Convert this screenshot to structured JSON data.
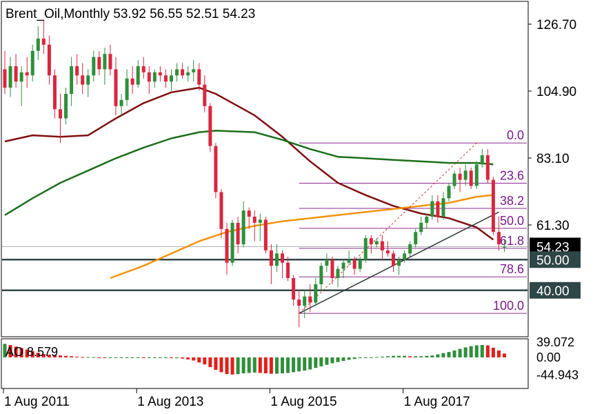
{
  "title": "Brent_Oil,Monthly  53.92 56.55 52.51 54.23",
  "chart_data": {
    "type": "candlestick",
    "symbol": "Brent_Oil",
    "timeframe": "Monthly",
    "ohlc_header": {
      "open": 53.92,
      "high": 56.55,
      "low": 52.51,
      "close": 54.23
    },
    "y_ticks": [
      "126.70",
      "104.90",
      "83.10",
      "61.30"
    ],
    "y_ticks_values": [
      126.7,
      104.9,
      83.1,
      61.3
    ],
    "last_price_label": "54.23",
    "last_price": 54.23,
    "horizontal_levels": [
      {
        "label": "50.00",
        "value": 50.0
      },
      {
        "label": "40.00",
        "value": 40.0
      }
    ],
    "x_ticks": [
      "1 Aug 2011",
      "1 Aug 2013",
      "1 Aug 2015",
      "1 Aug 2017"
    ],
    "fib_levels": [
      {
        "label": "0.0",
        "value": 88.0
      },
      {
        "label": "23.6",
        "value": 74.9
      },
      {
        "label": "38.2",
        "value": 66.7
      },
      {
        "label": "50.0",
        "value": 60.2
      },
      {
        "label": "61.8",
        "value": 53.7
      },
      {
        "label": "78.6",
        "value": 44.4
      },
      {
        "label": "100.0",
        "value": 32.5
      }
    ],
    "candles": [
      {
        "o": 112,
        "h": 118,
        "l": 104,
        "c": 106
      },
      {
        "o": 106,
        "h": 116,
        "l": 103,
        "c": 113
      },
      {
        "o": 113,
        "h": 117,
        "l": 106,
        "c": 108
      },
      {
        "o": 108,
        "h": 113,
        "l": 100,
        "c": 111
      },
      {
        "o": 111,
        "h": 116,
        "l": 106,
        "c": 110
      },
      {
        "o": 110,
        "h": 120,
        "l": 108,
        "c": 118
      },
      {
        "o": 118,
        "h": 126,
        "l": 115,
        "c": 122
      },
      {
        "o": 122,
        "h": 128,
        "l": 117,
        "c": 120
      },
      {
        "o": 120,
        "h": 123,
        "l": 107,
        "c": 110
      },
      {
        "o": 110,
        "h": 112,
        "l": 96,
        "c": 99
      },
      {
        "o": 99,
        "h": 104,
        "l": 88,
        "c": 96
      },
      {
        "o": 96,
        "h": 106,
        "l": 94,
        "c": 104
      },
      {
        "o": 104,
        "h": 116,
        "l": 100,
        "c": 113
      },
      {
        "o": 113,
        "h": 117,
        "l": 107,
        "c": 110
      },
      {
        "o": 110,
        "h": 114,
        "l": 104,
        "c": 107
      },
      {
        "o": 107,
        "h": 112,
        "l": 103,
        "c": 110
      },
      {
        "o": 110,
        "h": 118,
        "l": 108,
        "c": 116
      },
      {
        "o": 116,
        "h": 118,
        "l": 110,
        "c": 112
      },
      {
        "o": 112,
        "h": 119,
        "l": 107,
        "c": 117
      },
      {
        "o": 117,
        "h": 120,
        "l": 110,
        "c": 112
      },
      {
        "o": 112,
        "h": 116,
        "l": 97,
        "c": 100
      },
      {
        "o": 100,
        "h": 104,
        "l": 97,
        "c": 102
      },
      {
        "o": 102,
        "h": 112,
        "l": 100,
        "c": 109
      },
      {
        "o": 109,
        "h": 113,
        "l": 104,
        "c": 107
      },
      {
        "o": 107,
        "h": 115,
        "l": 106,
        "c": 113
      },
      {
        "o": 113,
        "h": 116,
        "l": 109,
        "c": 111
      },
      {
        "o": 111,
        "h": 113,
        "l": 104,
        "c": 108
      },
      {
        "o": 108,
        "h": 112,
        "l": 106,
        "c": 111
      },
      {
        "o": 111,
        "h": 113,
        "l": 108,
        "c": 110
      },
      {
        "o": 110,
        "h": 112,
        "l": 106,
        "c": 108
      },
      {
        "o": 108,
        "h": 112,
        "l": 105,
        "c": 110
      },
      {
        "o": 110,
        "h": 114,
        "l": 108,
        "c": 112
      },
      {
        "o": 112,
        "h": 114,
        "l": 109,
        "c": 110
      },
      {
        "o": 110,
        "h": 113,
        "l": 108,
        "c": 111
      },
      {
        "o": 111,
        "h": 115,
        "l": 108,
        "c": 112
      },
      {
        "o": 112,
        "h": 114,
        "l": 105,
        "c": 107
      },
      {
        "o": 107,
        "h": 110,
        "l": 98,
        "c": 100
      },
      {
        "o": 100,
        "h": 101,
        "l": 85,
        "c": 87
      },
      {
        "o": 87,
        "h": 88,
        "l": 70,
        "c": 72
      },
      {
        "o": 72,
        "h": 73,
        "l": 57,
        "c": 60
      },
      {
        "o": 60,
        "h": 62,
        "l": 45,
        "c": 49
      },
      {
        "o": 49,
        "h": 63,
        "l": 48,
        "c": 62
      },
      {
        "o": 62,
        "h": 64,
        "l": 52,
        "c": 55
      },
      {
        "o": 55,
        "h": 69,
        "l": 54,
        "c": 66
      },
      {
        "o": 66,
        "h": 67,
        "l": 60,
        "c": 64
      },
      {
        "o": 64,
        "h": 66,
        "l": 56,
        "c": 62
      },
      {
        "o": 62,
        "h": 65,
        "l": 56,
        "c": 63
      },
      {
        "o": 63,
        "h": 64,
        "l": 52,
        "c": 53
      },
      {
        "o": 53,
        "h": 55,
        "l": 42,
        "c": 48
      },
      {
        "o": 48,
        "h": 55,
        "l": 46,
        "c": 52
      },
      {
        "o": 52,
        "h": 53,
        "l": 44,
        "c": 49
      },
      {
        "o": 49,
        "h": 51,
        "l": 43,
        "c": 44
      },
      {
        "o": 44,
        "h": 45,
        "l": 35,
        "c": 37
      },
      {
        "o": 37,
        "h": 40,
        "l": 28,
        "c": 35
      },
      {
        "o": 35,
        "h": 40,
        "l": 31,
        "c": 38
      },
      {
        "o": 38,
        "h": 42,
        "l": 33,
        "c": 36
      },
      {
        "o": 36,
        "h": 44,
        "l": 35,
        "c": 42
      },
      {
        "o": 42,
        "h": 49,
        "l": 40,
        "c": 48
      },
      {
        "o": 48,
        "h": 52,
        "l": 46,
        "c": 50
      },
      {
        "o": 50,
        "h": 51,
        "l": 42,
        "c": 44
      },
      {
        "o": 44,
        "h": 48,
        "l": 41,
        "c": 47
      },
      {
        "o": 47,
        "h": 50,
        "l": 44,
        "c": 49
      },
      {
        "o": 49,
        "h": 53,
        "l": 48,
        "c": 50
      },
      {
        "o": 50,
        "h": 51,
        "l": 45,
        "c": 47
      },
      {
        "o": 47,
        "h": 51,
        "l": 46,
        "c": 50
      },
      {
        "o": 50,
        "h": 58,
        "l": 49,
        "c": 57
      },
      {
        "o": 57,
        "h": 58,
        "l": 52,
        "c": 55
      },
      {
        "o": 55,
        "h": 57,
        "l": 54,
        "c": 56
      },
      {
        "o": 56,
        "h": 58,
        "l": 50,
        "c": 53
      },
      {
        "o": 53,
        "h": 56,
        "l": 51,
        "c": 52
      },
      {
        "o": 52,
        "h": 53,
        "l": 46,
        "c": 48
      },
      {
        "o": 48,
        "h": 51,
        "l": 45,
        "c": 50
      },
      {
        "o": 50,
        "h": 53,
        "l": 49,
        "c": 52
      },
      {
        "o": 52,
        "h": 56,
        "l": 51,
        "c": 55
      },
      {
        "o": 55,
        "h": 60,
        "l": 54,
        "c": 59
      },
      {
        "o": 59,
        "h": 64,
        "l": 58,
        "c": 62
      },
      {
        "o": 62,
        "h": 65,
        "l": 60,
        "c": 64
      },
      {
        "o": 64,
        "h": 71,
        "l": 63,
        "c": 69
      },
      {
        "o": 69,
        "h": 71,
        "l": 62,
        "c": 64
      },
      {
        "o": 64,
        "h": 72,
        "l": 63,
        "c": 70
      },
      {
        "o": 70,
        "h": 75,
        "l": 69,
        "c": 74
      },
      {
        "o": 74,
        "h": 79,
        "l": 73,
        "c": 78
      },
      {
        "o": 78,
        "h": 80,
        "l": 72,
        "c": 76
      },
      {
        "o": 76,
        "h": 81,
        "l": 74,
        "c": 79
      },
      {
        "o": 79,
        "h": 80,
        "l": 73,
        "c": 74
      },
      {
        "o": 74,
        "h": 82,
        "l": 73,
        "c": 81
      },
      {
        "o": 81,
        "h": 86,
        "l": 80,
        "c": 84
      },
      {
        "o": 84,
        "h": 86,
        "l": 75,
        "c": 76
      },
      {
        "o": 76,
        "h": 77,
        "l": 58,
        "c": 59
      },
      {
        "o": 59,
        "h": 64,
        "l": 53,
        "c": 55
      },
      {
        "o": 53.92,
        "h": 56.55,
        "l": 52.51,
        "c": 54.23
      }
    ],
    "moving_averages": [
      {
        "color": "#7f0f0f",
        "points": [
          [
            0,
            88.5
          ],
          [
            5,
            90.5
          ],
          [
            10,
            90
          ],
          [
            15,
            90.5
          ],
          [
            20,
            96
          ],
          [
            25,
            101
          ],
          [
            30,
            104.5
          ],
          [
            35,
            106
          ],
          [
            38,
            104
          ],
          [
            45,
            97
          ],
          [
            50,
            90
          ],
          [
            55,
            82
          ],
          [
            60,
            75
          ],
          [
            65,
            71
          ],
          [
            70,
            67.5
          ],
          [
            75,
            65
          ],
          [
            80,
            63.5
          ],
          [
            85,
            60.5
          ],
          [
            88,
            56.5
          ]
        ]
      },
      {
        "color": "#1b6e1b",
        "points": [
          [
            0,
            64.5
          ],
          [
            5,
            70
          ],
          [
            10,
            75
          ],
          [
            15,
            79
          ],
          [
            20,
            83
          ],
          [
            25,
            86.5
          ],
          [
            30,
            89.5
          ],
          [
            35,
            91.5
          ],
          [
            38,
            92
          ],
          [
            45,
            91.5
          ],
          [
            50,
            89
          ],
          [
            55,
            86
          ],
          [
            60,
            83.5
          ],
          [
            65,
            83
          ],
          [
            70,
            82.5
          ],
          [
            75,
            82
          ],
          [
            80,
            81.5
          ],
          [
            85,
            81.5
          ],
          [
            88,
            81
          ]
        ]
      },
      {
        "color": "#f2930b",
        "points": [
          [
            19,
            44
          ],
          [
            25,
            48
          ],
          [
            30,
            52
          ],
          [
            35,
            56
          ],
          [
            40,
            59
          ],
          [
            45,
            61
          ],
          [
            50,
            62.5
          ],
          [
            55,
            63.5
          ],
          [
            60,
            64.5
          ],
          [
            65,
            65.5
          ],
          [
            70,
            66.5
          ],
          [
            75,
            67.5
          ],
          [
            80,
            68.5
          ],
          [
            85,
            70.5
          ],
          [
            88,
            71
          ]
        ]
      }
    ],
    "trendlines": [
      {
        "from": [
          53,
          32.5
        ],
        "to": [
          89,
          65.5
        ],
        "color": "#2f3a3a",
        "dashed": false
      },
      {
        "from": [
          53,
          32.5
        ],
        "to": [
          85,
          88
        ],
        "color": "#cc3333",
        "dashed": true
      }
    ],
    "indicator": {
      "name": "AO 8.579",
      "ticks": [
        "39.072",
        "0.00",
        "-44.943"
      ],
      "tick_values": [
        39.072,
        0.0,
        -44.943
      ],
      "values": [
        35,
        32,
        28,
        24,
        20,
        16,
        12,
        9,
        7,
        6,
        5,
        4,
        3,
        2,
        1,
        1,
        1,
        0,
        -1,
        -1,
        -1,
        -1,
        -1,
        0,
        0,
        -1,
        -1,
        -1,
        -1,
        -1,
        -2,
        -2,
        -3,
        -5,
        -8,
        -13,
        -18,
        -25,
        -32,
        -38,
        -43,
        -44,
        -43,
        -41,
        -40,
        -39,
        -40,
        -41,
        -42,
        -42,
        -41,
        -40,
        -38,
        -36,
        -34,
        -31,
        -27,
        -23,
        -19,
        -15,
        -12,
        -9,
        -6,
        -4,
        -2,
        -1,
        0,
        1,
        2,
        3,
        4,
        4,
        4,
        3,
        3,
        3,
        4,
        5,
        8,
        11,
        14,
        18,
        22,
        26,
        29,
        31,
        32,
        31,
        25,
        18,
        10
      ]
    },
    "grid": false,
    "legend": "none"
  }
}
